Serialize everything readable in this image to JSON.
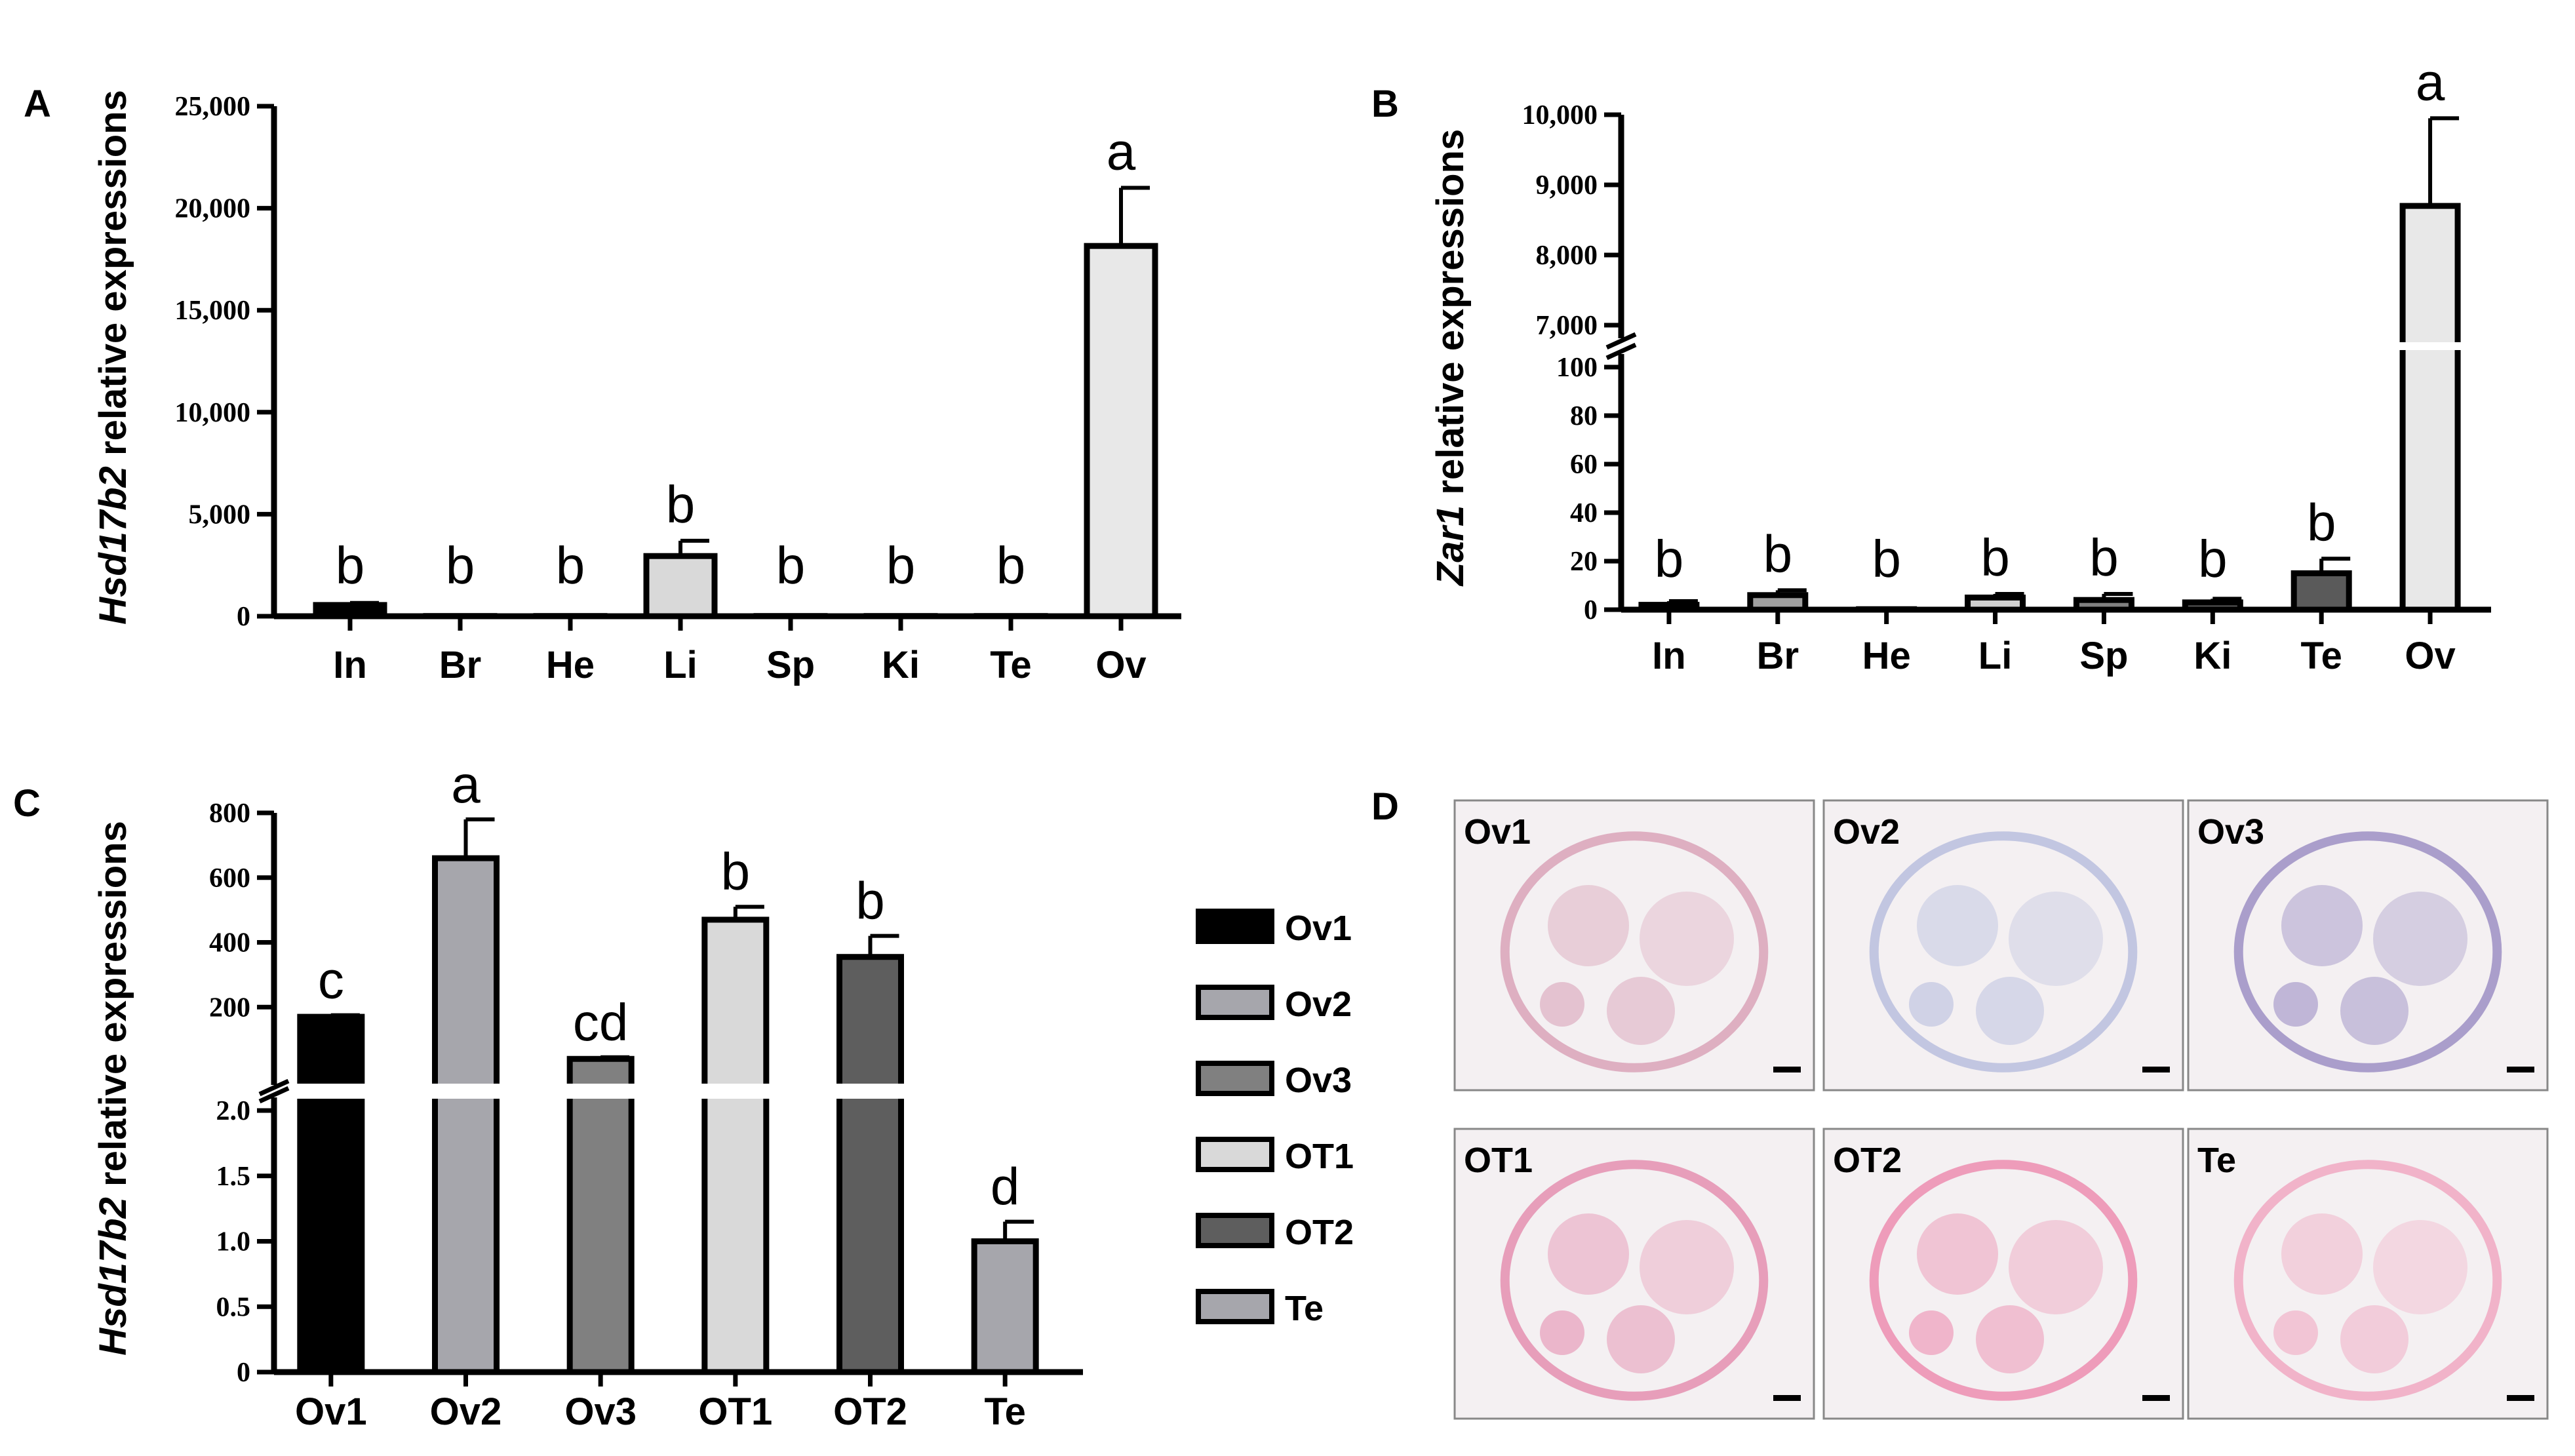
{
  "panels": {
    "A": "A",
    "B": "B",
    "C": "C",
    "D": "D"
  },
  "chart_data": [
    {
      "id": "A",
      "type": "bar",
      "ylabel_gene": "Hsd17b2",
      "ylabel_text": "relative expressions",
      "categories": [
        "In",
        "Br",
        "He",
        "Li",
        "Sp",
        "Ki",
        "Te",
        "Ov"
      ],
      "values": [
        550,
        10,
        10,
        2950,
        10,
        10,
        10,
        18150
      ],
      "errors": [
        100,
        0,
        0,
        750,
        0,
        0,
        0,
        2850
      ],
      "significance": [
        "b",
        "b",
        "b",
        "b",
        "b",
        "b",
        "b",
        "a"
      ],
      "fill_colors": [
        "#000000",
        "#ffffff",
        "#ffffff",
        "#d9d9d9",
        "#ffffff",
        "#ffffff",
        "#ffffff",
        "#e8e8e8"
      ],
      "ylim": [
        0,
        25000
      ],
      "yticks": [
        "0",
        "5,000",
        "10,000",
        "15,000",
        "20,000",
        "25,000"
      ]
    },
    {
      "id": "B",
      "type": "bar",
      "ylabel_gene": "Zar1",
      "ylabel_text": "relative expressions",
      "categories": [
        "In",
        "Br",
        "He",
        "Li",
        "Sp",
        "Ki",
        "Te",
        "Ov"
      ],
      "values": [
        2,
        6,
        0.2,
        5,
        4,
        3,
        15,
        8700
      ],
      "errors": [
        1.5,
        2,
        0,
        1.5,
        2.5,
        1.5,
        6,
        1250
      ],
      "significance": [
        "b",
        "b",
        "b",
        "b",
        "b",
        "b",
        "b",
        "a"
      ],
      "fill_colors": [
        "#000000",
        "#a0a0a0",
        "#ffffff",
        "#d0d0d0",
        "#808080",
        "#555555",
        "#5a5a5a",
        "#e8e8e8"
      ],
      "broken_axis": {
        "lower": [
          0,
          100
        ],
        "upper": [
          7000,
          10000
        ]
      },
      "yticks_lower": [
        "0",
        "20",
        "40",
        "60",
        "80",
        "100"
      ],
      "yticks_upper": [
        "7,000",
        "8,000",
        "9,000",
        "10,000"
      ]
    },
    {
      "id": "C",
      "type": "bar",
      "ylabel_gene": "Hsd17b2",
      "ylabel_text": "relative expressions",
      "categories": [
        "Ov1",
        "Ov2",
        "Ov3",
        "OT1",
        "OT2",
        "Te"
      ],
      "values": [
        170,
        660,
        40,
        470,
        355,
        1.0
      ],
      "errors": [
        5,
        120,
        5,
        40,
        65,
        0.15
      ],
      "significance": [
        "c",
        "a",
        "cd",
        "b",
        "b",
        "d"
      ],
      "fill_colors": [
        "#000000",
        "#a6a6ac",
        "#808080",
        "#d9d9d9",
        "#5e5e5e",
        "#a6a6ac"
      ],
      "broken_axis": {
        "lower": [
          0,
          2.0
        ],
        "upper": [
          0,
          800
        ]
      },
      "yticks_lower": [
        "0",
        "0.5",
        "1.0",
        "1.5",
        "2.0"
      ],
      "yticks_upper": [
        "200",
        "400",
        "600",
        "800"
      ],
      "legend": [
        "Ov1",
        "Ov2",
        "Ov3",
        "OT1",
        "OT2",
        "Te"
      ],
      "legend_placement": "right"
    }
  ],
  "micrographs": [
    {
      "label": "Ov1",
      "stain": "#d9a3b9"
    },
    {
      "label": "Ov2",
      "stain": "#b8bede"
    },
    {
      "label": "Ov3",
      "stain": "#9c8fc4"
    },
    {
      "label": "OT1",
      "stain": "#e48fb0"
    },
    {
      "label": "OT2",
      "stain": "#ec8db0"
    },
    {
      "label": "Te",
      "stain": "#f0a8c2"
    }
  ]
}
